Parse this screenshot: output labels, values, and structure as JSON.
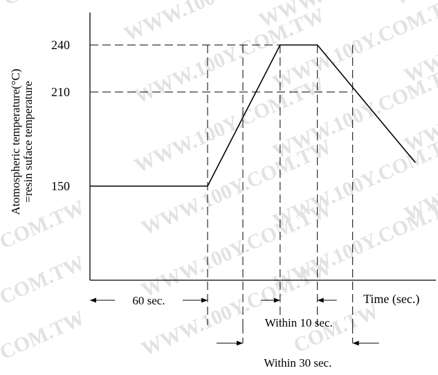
{
  "chart_data": {
    "type": "line",
    "ylabel_line1": "Atomospheric temperature(°C)",
    "ylabel_line2": "=resin suface temperature",
    "xlabel": "Time (sec.)",
    "y_ticks": [
      {
        "value": 150,
        "label": "150"
      },
      {
        "value": 210,
        "label": "210"
      },
      {
        "value": 240,
        "label": "240"
      }
    ],
    "series": [
      {
        "points": [
          {
            "t": 0,
            "temp": 150
          },
          {
            "t": 60,
            "temp": 150
          },
          {
            "t": 97,
            "temp": 240
          },
          {
            "t": 116,
            "temp": 240
          },
          {
            "t": 166,
            "temp": 165
          }
        ]
      }
    ],
    "guide_times": [
      60,
      78,
      97,
      116,
      134
    ],
    "annotations": [
      {
        "label": "60 sec.",
        "from": 0,
        "to": 60,
        "style": "span"
      },
      {
        "label": "Within 10 sec.",
        "from": 97,
        "to": 116,
        "style": "outside"
      },
      {
        "label": "Within 30 sec.",
        "from": 78,
        "to": 134,
        "style": "outside"
      }
    ]
  },
  "watermark": {
    "text": "WWW.100Y.COM.TW",
    "fragment": "COM.TW"
  }
}
